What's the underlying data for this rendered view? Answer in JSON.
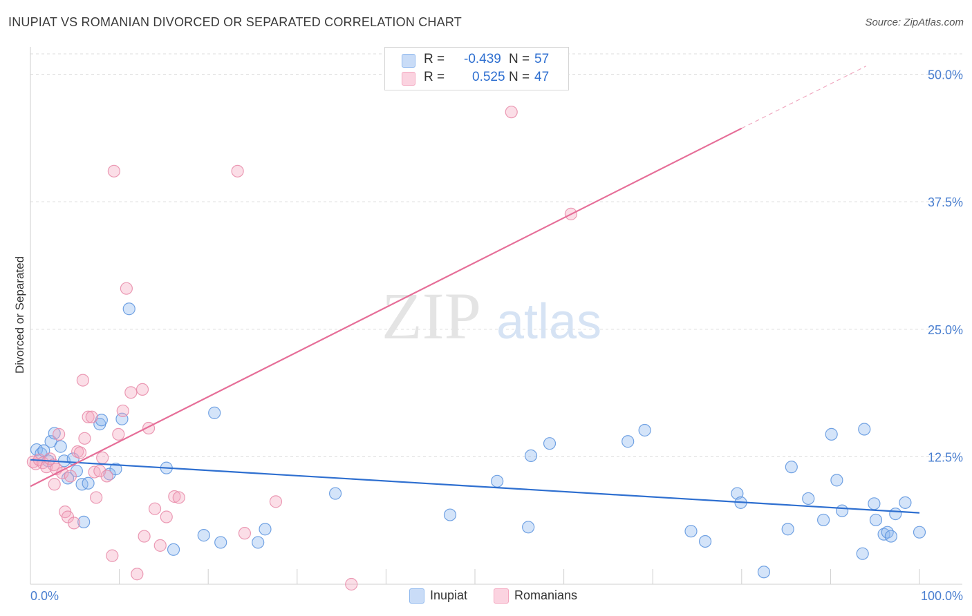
{
  "header": {
    "title": "INUPIAT VS ROMANIAN DIVORCED OR SEPARATED CORRELATION CHART",
    "source": "Source: ZipAtlas.com"
  },
  "watermark": {
    "zip": "ZIP",
    "atlas": "atlas"
  },
  "legend": {
    "rows": [
      {
        "r_label": "R =",
        "r_value": "-0.439",
        "n_label": "N =",
        "n_value": "57",
        "color": "#8fb8ee"
      },
      {
        "r_label": "R =",
        "r_value": "0.525",
        "n_label": "N =",
        "n_value": "47",
        "color": "#f4a7bf"
      }
    ]
  },
  "bottom_legend": {
    "items": [
      {
        "label": "Inupiat",
        "color": "#8fb8ee"
      },
      {
        "label": "Romanians",
        "color": "#f4a7bf"
      }
    ]
  },
  "chart_data": {
    "type": "scatter",
    "title": "INUPIAT VS ROMANIAN DIVORCED OR SEPARATED CORRELATION CHART",
    "xlabel": "",
    "ylabel": "Divorced or Separated",
    "xlim": [
      0,
      100
    ],
    "ylim": [
      0,
      52
    ],
    "x_tick_labels": [
      "0.0%",
      "100.0%"
    ],
    "y_ticks": [
      12.5,
      25.0,
      37.5,
      50.0
    ],
    "y_tick_labels": [
      "12.5%",
      "25.0%",
      "37.5%",
      "50.0%"
    ],
    "grid": true,
    "legend_position": "top-center",
    "series": [
      {
        "name": "Inupiat",
        "color": "#8fb8ee",
        "stroke": "#5b93de",
        "trend": {
          "x0": 0,
          "y0": 12.2,
          "x1": 100,
          "y1": 7.0
        },
        "points": [
          [
            0.7,
            13.2
          ],
          [
            1.2,
            12.8
          ],
          [
            1.5,
            13.1
          ],
          [
            2.0,
            12.1
          ],
          [
            2.3,
            14.0
          ],
          [
            2.7,
            14.8
          ],
          [
            3.4,
            13.5
          ],
          [
            3.8,
            12.1
          ],
          [
            4.2,
            10.4
          ],
          [
            4.8,
            12.3
          ],
          [
            5.2,
            11.1
          ],
          [
            5.8,
            9.8
          ],
          [
            6.0,
            6.1
          ],
          [
            6.5,
            9.9
          ],
          [
            7.8,
            15.7
          ],
          [
            8.0,
            16.1
          ],
          [
            8.9,
            10.8
          ],
          [
            9.6,
            11.3
          ],
          [
            10.3,
            16.2
          ],
          [
            11.1,
            27.0
          ],
          [
            15.3,
            11.4
          ],
          [
            16.1,
            3.4
          ],
          [
            19.5,
            4.8
          ],
          [
            20.7,
            16.8
          ],
          [
            21.4,
            4.1
          ],
          [
            25.6,
            4.1
          ],
          [
            26.4,
            5.4
          ],
          [
            34.3,
            8.9
          ],
          [
            47.2,
            6.8
          ],
          [
            52.5,
            10.1
          ],
          [
            56.0,
            5.6
          ],
          [
            56.3,
            12.6
          ],
          [
            58.4,
            13.8
          ],
          [
            67.2,
            14.0
          ],
          [
            69.1,
            15.1
          ],
          [
            74.3,
            5.2
          ],
          [
            75.9,
            4.2
          ],
          [
            79.5,
            8.9
          ],
          [
            79.9,
            8.0
          ],
          [
            82.5,
            1.2
          ],
          [
            85.2,
            5.4
          ],
          [
            85.6,
            11.5
          ],
          [
            87.5,
            8.4
          ],
          [
            89.2,
            6.3
          ],
          [
            90.1,
            14.7
          ],
          [
            90.7,
            10.2
          ],
          [
            91.3,
            7.2
          ],
          [
            93.6,
            3.0
          ],
          [
            93.8,
            15.2
          ],
          [
            94.9,
            7.9
          ],
          [
            95.1,
            6.3
          ],
          [
            96.0,
            4.9
          ],
          [
            96.4,
            5.1
          ],
          [
            96.8,
            4.7
          ],
          [
            97.3,
            6.9
          ],
          [
            98.4,
            8.0
          ],
          [
            100.0,
            5.1
          ]
        ]
      },
      {
        "name": "Romanians",
        "color": "#f4a7bf",
        "stroke": "#e889a8",
        "trend": {
          "x0": 0,
          "y0": 9.6,
          "x1": 80,
          "y1": 44.7
        },
        "trend_dashed": {
          "x0": 80,
          "y0": 44.7,
          "x1": 94,
          "y1": 50.8
        },
        "points": [
          [
            0.3,
            12.0
          ],
          [
            0.6,
            11.8
          ],
          [
            1.0,
            12.2
          ],
          [
            1.4,
            11.9
          ],
          [
            1.8,
            11.5
          ],
          [
            2.2,
            12.3
          ],
          [
            2.6,
            11.7
          ],
          [
            2.7,
            9.8
          ],
          [
            2.9,
            11.3
          ],
          [
            3.2,
            14.7
          ],
          [
            3.6,
            10.9
          ],
          [
            3.9,
            7.1
          ],
          [
            4.2,
            6.6
          ],
          [
            4.5,
            10.6
          ],
          [
            4.9,
            6.0
          ],
          [
            5.3,
            13.0
          ],
          [
            5.6,
            12.9
          ],
          [
            5.9,
            20.0
          ],
          [
            6.1,
            14.3
          ],
          [
            6.5,
            16.4
          ],
          [
            6.9,
            16.4
          ],
          [
            7.2,
            11.0
          ],
          [
            7.4,
            8.5
          ],
          [
            7.8,
            11.1
          ],
          [
            8.1,
            12.4
          ],
          [
            8.6,
            10.6
          ],
          [
            9.2,
            2.8
          ],
          [
            9.4,
            40.5
          ],
          [
            9.9,
            14.7
          ],
          [
            10.4,
            17.0
          ],
          [
            10.8,
            29.0
          ],
          [
            11.3,
            18.8
          ],
          [
            12.0,
            1.0
          ],
          [
            12.6,
            19.1
          ],
          [
            12.8,
            4.7
          ],
          [
            13.3,
            15.3
          ],
          [
            14.0,
            7.4
          ],
          [
            14.6,
            3.8
          ],
          [
            15.3,
            6.6
          ],
          [
            16.2,
            8.6
          ],
          [
            16.7,
            8.5
          ],
          [
            23.3,
            40.5
          ],
          [
            24.1,
            5.0
          ],
          [
            27.6,
            8.1
          ],
          [
            36.1,
            0.0
          ],
          [
            54.1,
            46.3
          ],
          [
            60.8,
            36.3
          ]
        ]
      }
    ]
  }
}
